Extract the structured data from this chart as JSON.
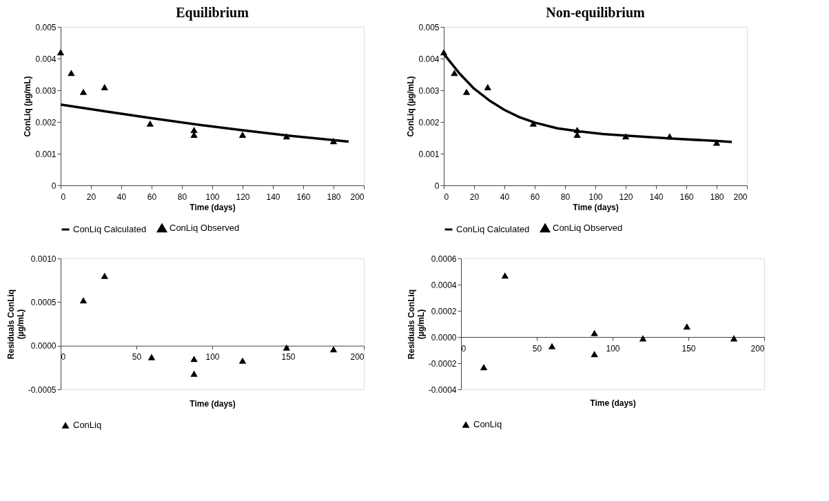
{
  "chart_data": [
    {
      "type": "scatter",
      "title": "Equilibrium",
      "xlabel": "Time (days)",
      "ylabel": "ConLiq (µg/mL)",
      "xlim": [
        0,
        200
      ],
      "xticks": [
        0,
        20,
        40,
        60,
        80,
        100,
        120,
        140,
        160,
        180,
        200
      ],
      "ylim": [
        0,
        0.005
      ],
      "yticks": [
        0,
        0.001,
        0.002,
        0.003,
        0.004,
        0.005
      ],
      "grid": false,
      "legend": "bottom",
      "series": [
        {
          "name": "ConLiq Calculated",
          "type": "line",
          "color": "#000000",
          "x": [
            0,
            30,
            60,
            90,
            120,
            150,
            190
          ],
          "values": [
            0.00255,
            0.00233,
            0.00212,
            0.00192,
            0.00174,
            0.00157,
            0.00138
          ]
        },
        {
          "name": "ConLiq Observed",
          "marker": "triangle",
          "color": "#000000",
          "x": [
            0,
            7,
            15,
            29,
            59,
            88,
            88,
            120,
            149,
            180
          ],
          "values": [
            0.0042,
            0.00355,
            0.00295,
            0.0031,
            0.00195,
            0.00175,
            0.0016,
            0.0016,
            0.00155,
            0.0014
          ]
        }
      ]
    },
    {
      "type": "scatter",
      "title": "Non-equilibrium",
      "xlabel": "Time (days)",
      "ylabel": "ConLiq (µg/mL)",
      "xlim": [
        0,
        200
      ],
      "xticks": [
        0,
        20,
        40,
        60,
        80,
        100,
        120,
        140,
        160,
        180,
        200
      ],
      "ylim": [
        0,
        0.005
      ],
      "yticks": [
        0,
        0.001,
        0.002,
        0.003,
        0.004,
        0.005
      ],
      "grid": false,
      "legend": "bottom",
      "series": [
        {
          "name": "ConLiq Calculated",
          "type": "line",
          "color": "#000000",
          "x": [
            0,
            5,
            10,
            15,
            20,
            30,
            40,
            50,
            60,
            75,
            90,
            105,
            120,
            150,
            180,
            190
          ],
          "values": [
            0.00415,
            0.00385,
            0.00355,
            0.0033,
            0.00305,
            0.00268,
            0.00238,
            0.00215,
            0.00198,
            0.0018,
            0.0017,
            0.00162,
            0.00157,
            0.00148,
            0.0014,
            0.00137
          ]
        },
        {
          "name": "ConLiq Observed",
          "marker": "triangle",
          "color": "#000000",
          "x": [
            0,
            7,
            15,
            29,
            59,
            88,
            88,
            120,
            149,
            180
          ],
          "values": [
            0.0042,
            0.00355,
            0.00295,
            0.0031,
            0.00195,
            0.00175,
            0.0016,
            0.00155,
            0.00155,
            0.00135
          ]
        }
      ]
    },
    {
      "type": "scatter",
      "xlabel": "Time (days)",
      "ylabel": "Residuals ConLiq (µg/mL)",
      "xlim": [
        0,
        200
      ],
      "xticks": [
        0,
        50,
        100,
        150,
        200
      ],
      "ylim": [
        -0.0005,
        0.001
      ],
      "yticks": [
        {
          "value": -0.0005,
          "label": "-0.0005"
        },
        {
          "value": 0,
          "label": "0.0000"
        },
        {
          "value": 0.0005,
          "label": "0.0005"
        },
        {
          "value": 0.001,
          "label": "0.0010"
        }
      ],
      "grid": false,
      "legend": "bottom",
      "series": [
        {
          "name": "ConLiq",
          "marker": "triangle",
          "color": "#000000",
          "x": [
            15,
            29,
            60,
            88,
            88,
            120,
            149,
            180
          ],
          "values": [
            0.00052,
            0.0008,
            -0.00013,
            -0.00015,
            -0.00032,
            -0.00017,
            -2e-05,
            -4e-05
          ]
        }
      ]
    },
    {
      "type": "scatter",
      "xlabel": "Time (days)",
      "ylabel": "Residuals ConLiq (µg/mL)",
      "xlim": [
        0,
        200
      ],
      "xticks": [
        0,
        50,
        100,
        150,
        200
      ],
      "ylim": [
        -0.0004,
        0.0006
      ],
      "yticks": [
        {
          "value": -0.0004,
          "label": "-0.0004"
        },
        {
          "value": -0.0002,
          "label": "-0.0002"
        },
        {
          "value": 0,
          "label": "0.0000"
        },
        {
          "value": 0.0002,
          "label": "0.0002"
        },
        {
          "value": 0.0004,
          "label": "0.0004"
        },
        {
          "value": 0.0006,
          "label": "0.0006"
        }
      ],
      "grid": false,
      "legend": "bottom",
      "series": [
        {
          "name": "ConLiq",
          "marker": "triangle",
          "color": "#000000",
          "x": [
            15,
            29,
            60,
            88,
            88,
            120,
            149,
            180
          ],
          "values": [
            -0.00023,
            0.00047,
            -7e-05,
            3e-05,
            -0.00013,
            -1e-05,
            8e-05,
            -1e-05
          ]
        }
      ]
    }
  ]
}
